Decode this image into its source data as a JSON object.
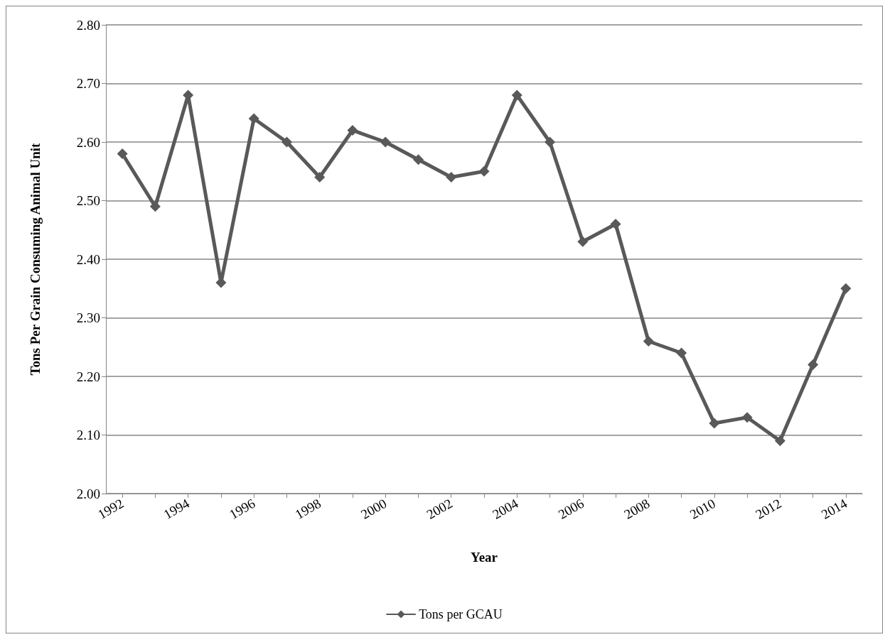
{
  "chart_data": {
    "type": "line",
    "xlabel": "Year",
    "ylabel": "Tons Per Grain Consuming Animal Unit",
    "categories": [
      "1992",
      null,
      "1994",
      null,
      "1996",
      null,
      "1998",
      null,
      "2000",
      null,
      "2002",
      null,
      "2004",
      null,
      "2006",
      null,
      "2008",
      null,
      "2010",
      null,
      "2012",
      null,
      "2014"
    ],
    "series": [
      {
        "name": "Tons per GCAU",
        "color": "#595959",
        "values": [
          2.58,
          2.49,
          2.68,
          2.36,
          2.64,
          2.6,
          2.54,
          2.62,
          2.6,
          2.57,
          2.54,
          2.55,
          2.68,
          2.6,
          2.43,
          2.46,
          2.26,
          2.24,
          2.12,
          2.13,
          2.09,
          2.22,
          2.35
        ]
      }
    ],
    "ylim": [
      2.0,
      2.8
    ],
    "yticks": [
      {
        "value": 2.0,
        "label": "2.00"
      },
      {
        "value": 2.1,
        "label": "2.10"
      },
      {
        "value": 2.2,
        "label": "2.20"
      },
      {
        "value": 2.3,
        "label": "2.30"
      },
      {
        "value": 2.4,
        "label": "2.40"
      },
      {
        "value": 2.5,
        "label": "2.50"
      },
      {
        "value": 2.6,
        "label": "2.60"
      },
      {
        "value": 2.7,
        "label": "2.70"
      },
      {
        "value": 2.8,
        "label": "2.80"
      }
    ],
    "grid": "y",
    "legend": "bottom",
    "marker": "diamond",
    "line_style": "solid"
  }
}
